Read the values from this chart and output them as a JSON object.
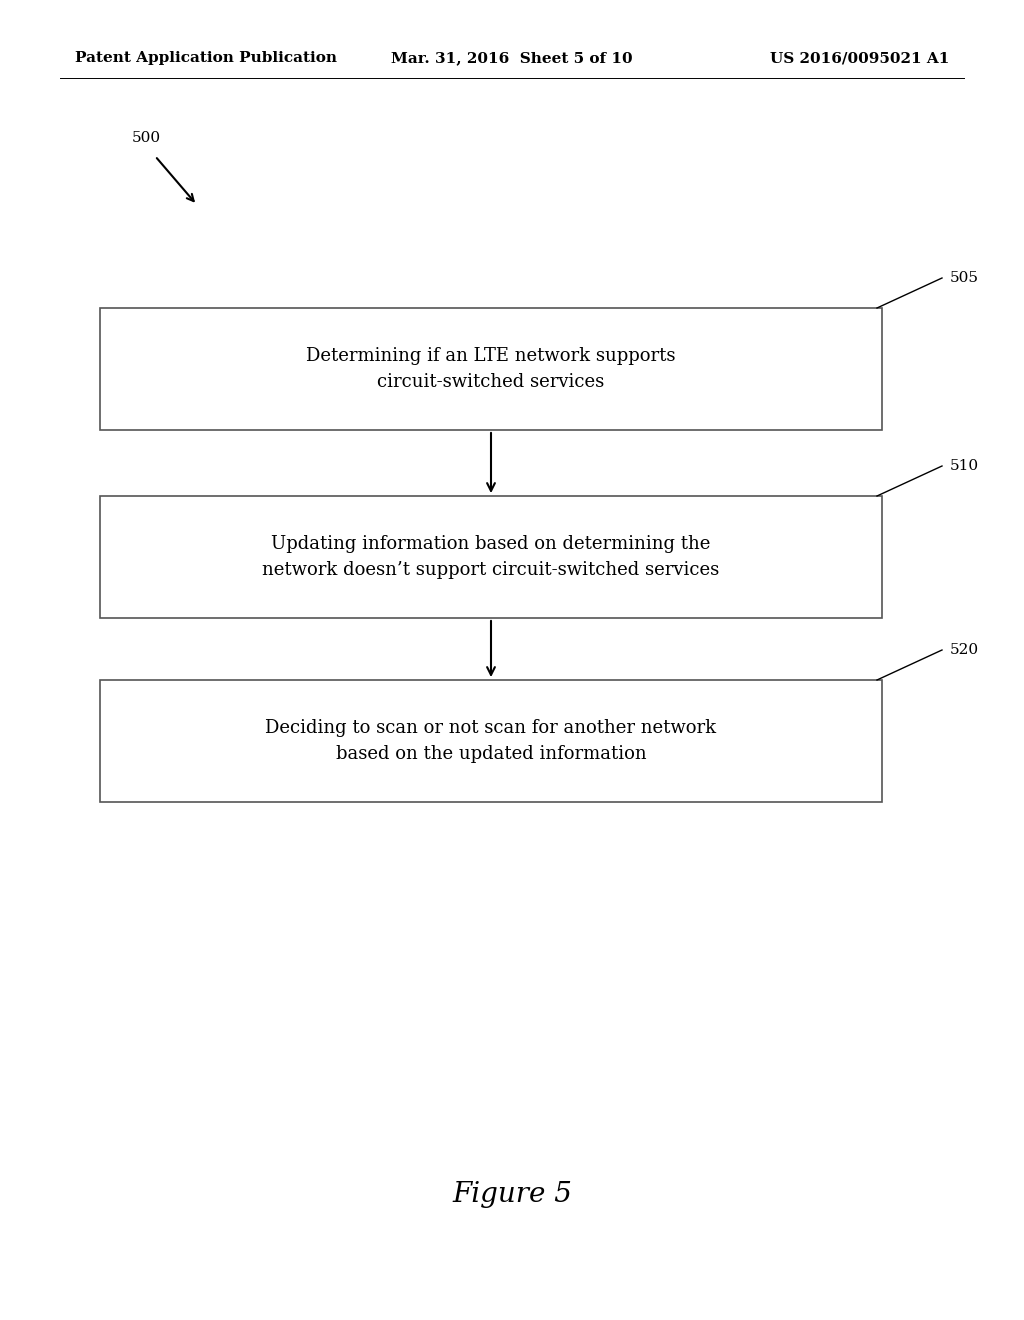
{
  "background_color": "#ffffff",
  "header_left": "Patent Application Publication",
  "header_center": "Mar. 31, 2016  Sheet 5 of 10",
  "header_right": "US 2016/0095021 A1",
  "figure_label": "500",
  "boxes": [
    {
      "label": "505",
      "text_line1": "Determining if an LTE network supports",
      "text_line2": "circuit-switched services"
    },
    {
      "label": "510",
      "text_line1": "Updating information based on determining the",
      "text_line2": "network doesn’t support circuit-switched services"
    },
    {
      "label": "520",
      "text_line1": "Deciding to scan or not scan for another network",
      "text_line2": "based on the updated information"
    }
  ],
  "figure_caption": "Figure 5"
}
